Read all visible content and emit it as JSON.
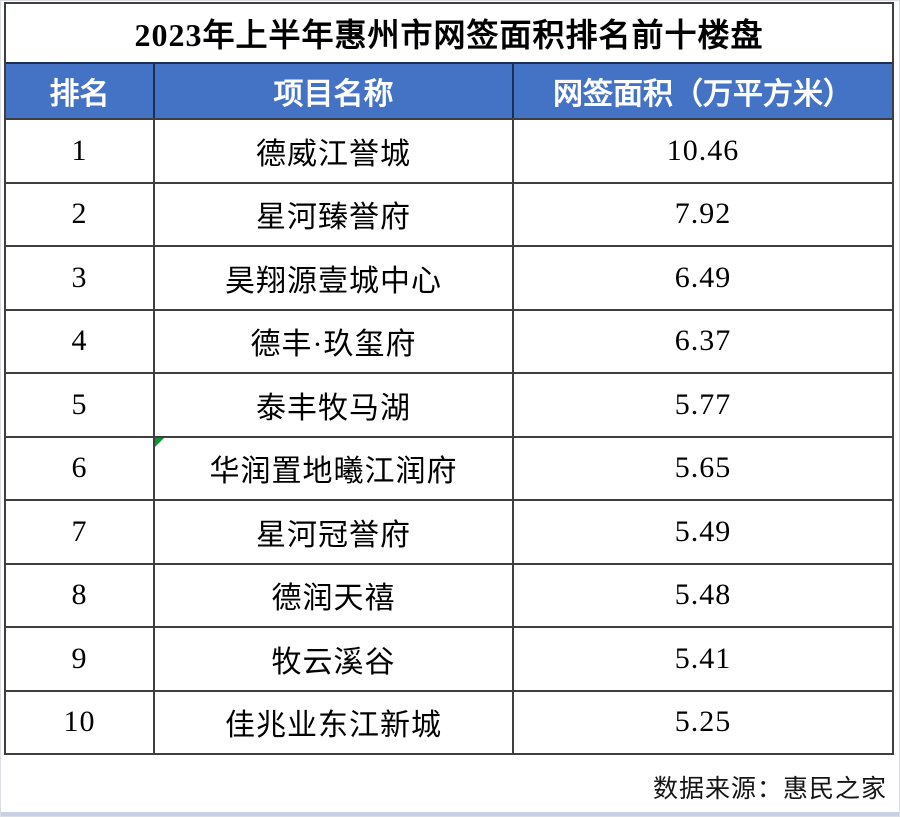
{
  "page": {
    "title": "2023年上半年惠州市网签面积排名前十楼盘",
    "source_note": "数据来源：惠民之家"
  },
  "table": {
    "columns": [
      "排名",
      "项目名称",
      "网签面积（万平方米）"
    ],
    "rows": [
      {
        "rank": "1",
        "name": "德威江誉城",
        "area": "10.46"
      },
      {
        "rank": "2",
        "name": "星河臻誉府",
        "area": "7.92"
      },
      {
        "rank": "3",
        "name": "昊翔源壹城中心",
        "area": "6.49"
      },
      {
        "rank": "4",
        "name": "德丰·玖玺府",
        "area": "6.37"
      },
      {
        "rank": "5",
        "name": "泰丰牧马湖",
        "area": "5.77"
      },
      {
        "rank": "6",
        "name": "华润置地曦江润府",
        "area": "5.65",
        "has_corner_marker": true
      },
      {
        "rank": "7",
        "name": "星河冠誉府",
        "area": "5.49"
      },
      {
        "rank": "8",
        "name": "德润天禧",
        "area": "5.48"
      },
      {
        "rank": "9",
        "name": "牧云溪谷",
        "area": "5.41"
      },
      {
        "rank": "10",
        "name": "佳兆业东江新城",
        "area": "5.25"
      }
    ]
  },
  "chart_data": {
    "type": "table",
    "title": "2023年上半年惠州市网签面积排名前十楼盘",
    "columns": [
      "排名",
      "项目名称",
      "网签面积（万平方米）"
    ],
    "categories": [
      "德威江誉城",
      "星河臻誉府",
      "昊翔源壹城中心",
      "德丰·玖玺府",
      "泰丰牧马湖",
      "华润置地曦江润府",
      "星河冠誉府",
      "德润天禧",
      "牧云溪谷",
      "佳兆业东江新城"
    ],
    "values": [
      10.46,
      7.92,
      6.49,
      6.37,
      5.77,
      5.65,
      5.49,
      5.48,
      5.41,
      5.25
    ],
    "unit": "万平方米",
    "source": "数据来源：惠民之家"
  },
  "colors": {
    "header_bg": "#4472C4",
    "header_text": "#FFFFFF",
    "header_border": "#1B2F55",
    "grid_border": "#3F3F3F",
    "marker_green": "#0E9432",
    "bottom_strip": "#C8D1E3"
  }
}
